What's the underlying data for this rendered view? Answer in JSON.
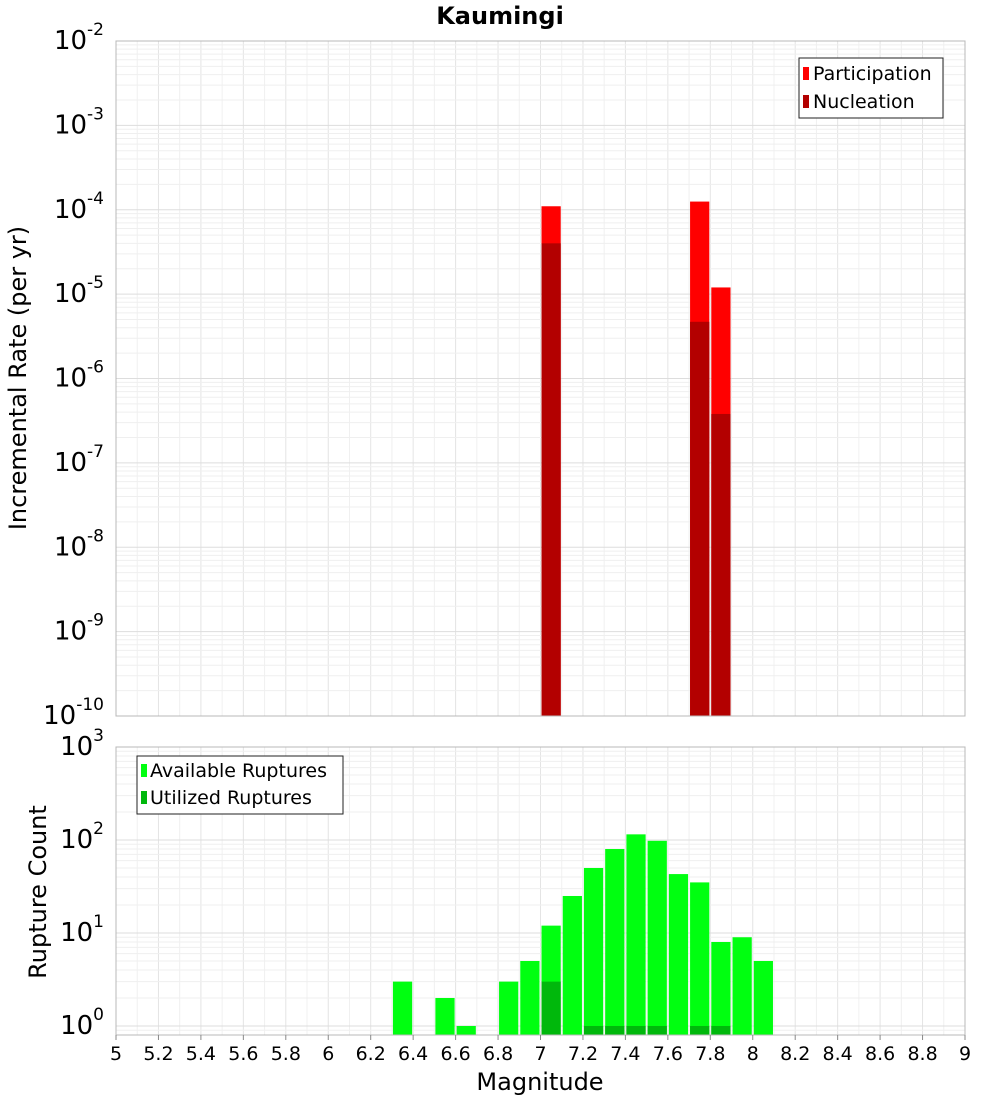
{
  "chart_data": [
    {
      "type": "bar",
      "title": "Kaumingi",
      "xlabel": "",
      "ylabel": "Incremental Rate (per yr)",
      "yscale": "log",
      "ylim": [
        1e-10,
        0.01
      ],
      "xlim": [
        5,
        9
      ],
      "grid": true,
      "legend_position": "top-right",
      "y_ticks": [
        {
          "base": "10",
          "exp": "-10"
        },
        {
          "base": "10",
          "exp": "-9"
        },
        {
          "base": "10",
          "exp": "-8"
        },
        {
          "base": "10",
          "exp": "-7"
        },
        {
          "base": "10",
          "exp": "-6"
        },
        {
          "base": "10",
          "exp": "-5"
        },
        {
          "base": "10",
          "exp": "-4"
        },
        {
          "base": "10",
          "exp": "-3"
        },
        {
          "base": "10",
          "exp": "-2"
        }
      ],
      "series": [
        {
          "name": "Participation",
          "color": "#ff0000",
          "points": [
            {
              "x": 7.05,
              "y": 0.00011
            },
            {
              "x": 7.75,
              "y": 0.000125
            },
            {
              "x": 7.85,
              "y": 1.2e-05
            }
          ]
        },
        {
          "name": "Nucleation",
          "color": "#b30000",
          "points": [
            {
              "x": 7.05,
              "y": 4e-05
            },
            {
              "x": 7.75,
              "y": 4.7e-06
            },
            {
              "x": 7.85,
              "y": 3.8e-07
            }
          ]
        }
      ]
    },
    {
      "type": "bar",
      "xlabel": "Magnitude",
      "ylabel": "Rupture Count",
      "yscale": "log",
      "ylim": [
        0.8,
        1000
      ],
      "xlim": [
        5,
        9
      ],
      "grid": true,
      "legend_position": "top-left",
      "x_ticks": [
        "5",
        "5.2",
        "5.4",
        "5.6",
        "5.8",
        "6",
        "6.2",
        "6.4",
        "6.6",
        "6.8",
        "7",
        "7.2",
        "7.4",
        "7.6",
        "7.8",
        "8",
        "8.2",
        "8.4",
        "8.6",
        "8.8",
        "9"
      ],
      "y_ticks": [
        {
          "base": "10",
          "exp": "0"
        },
        {
          "base": "10",
          "exp": "1"
        },
        {
          "base": "10",
          "exp": "2"
        },
        {
          "base": "10",
          "exp": "3"
        }
      ],
      "series": [
        {
          "name": "Available Ruptures",
          "color": "#00ff10",
          "points": [
            {
              "x": 6.35,
              "y": 3
            },
            {
              "x": 6.55,
              "y": 2
            },
            {
              "x": 6.65,
              "y": 1
            },
            {
              "x": 6.85,
              "y": 3
            },
            {
              "x": 6.95,
              "y": 5
            },
            {
              "x": 7.05,
              "y": 12
            },
            {
              "x": 7.15,
              "y": 25
            },
            {
              "x": 7.25,
              "y": 50
            },
            {
              "x": 7.35,
              "y": 80
            },
            {
              "x": 7.45,
              "y": 115
            },
            {
              "x": 7.55,
              "y": 98
            },
            {
              "x": 7.65,
              "y": 43
            },
            {
              "x": 7.75,
              "y": 35
            },
            {
              "x": 7.85,
              "y": 8
            },
            {
              "x": 7.95,
              "y": 9
            },
            {
              "x": 8.05,
              "y": 5
            }
          ]
        },
        {
          "name": "Utilized Ruptures",
          "color": "#00b80c",
          "points": [
            {
              "x": 7.05,
              "y": 3
            },
            {
              "x": 7.25,
              "y": 1
            },
            {
              "x": 7.35,
              "y": 1
            },
            {
              "x": 7.45,
              "y": 1
            },
            {
              "x": 7.55,
              "y": 1
            },
            {
              "x": 7.75,
              "y": 1
            },
            {
              "x": 7.85,
              "y": 1
            }
          ]
        }
      ]
    }
  ]
}
